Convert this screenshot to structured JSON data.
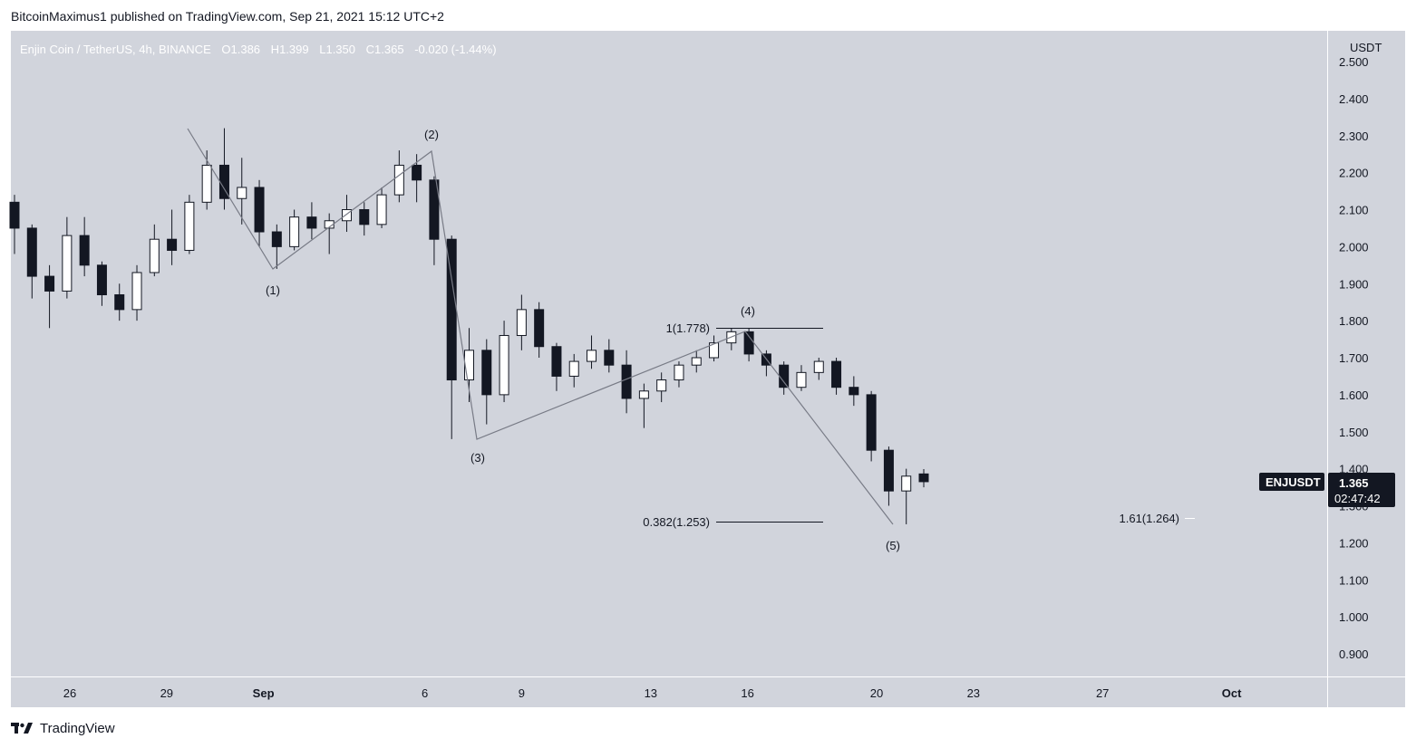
{
  "header": {
    "published": "BitcoinMaximus1 published on TradingView.com, Sep 21, 2021 15:12 UTC+2"
  },
  "symbol_line": {
    "name": "Enjin Coin / TetherUS, 4h, BINANCE",
    "o_label": "O",
    "o": "1.386",
    "h_label": "H",
    "h": "1.399",
    "l_label": "L",
    "l": "1.350",
    "c_label": "C",
    "c": "1.365",
    "change": "-0.020 (-1.44%)"
  },
  "price_axis": {
    "currency": "USDT",
    "ticks": [
      "2.500",
      "2.400",
      "2.300",
      "2.200",
      "2.100",
      "2.000",
      "1.900",
      "1.800",
      "1.700",
      "1.600",
      "1.500",
      "1.400",
      "1.300",
      "1.200",
      "1.100",
      "1.000",
      "0.900"
    ]
  },
  "time_axis": {
    "ticks": [
      "26",
      "29",
      "Sep",
      "6",
      "9",
      "13",
      "16",
      "20",
      "23",
      "27",
      "Oct"
    ]
  },
  "badge": {
    "symbol": "ENJUSDT",
    "price": "1.365",
    "countdown": "02:47:42"
  },
  "waves": [
    "(1)",
    "(2)",
    "(3)",
    "(4)",
    "(5)"
  ],
  "fib_labels": [
    "1(1.778)",
    "0.382(1.253)",
    "1.61(1.264)"
  ],
  "footer": {
    "brand": "TradingView"
  },
  "colors": {
    "plot_bg": "#d1d4dc",
    "bull": "#ffffff",
    "bear": "#131722",
    "wave_line": "#787b86"
  },
  "chart_data": {
    "type": "candlestick",
    "title": "Enjin Coin / TetherUS, 4h, BINANCE",
    "ylabel": "USDT",
    "ylim": [
      0.85,
      2.53
    ],
    "x_range": [
      "2021-08-24",
      "2021-10-03"
    ],
    "grid": false,
    "annotations": {
      "elliott_waves": [
        {
          "label": "(1)",
          "date": "2021-09-01",
          "price": 1.94
        },
        {
          "label": "(2)",
          "date": "2021-09-06",
          "price": 2.26
        },
        {
          "label": "(3)",
          "date": "2021-09-07",
          "price": 1.48
        },
        {
          "label": "(4)",
          "date": "2021-09-16",
          "price": 1.77
        },
        {
          "label": "(5)",
          "date": "2021-09-20",
          "price": 1.25
        }
      ],
      "fib_levels": [
        {
          "label": "1(1.778)",
          "price": 1.778
        },
        {
          "label": "0.382(1.253)",
          "price": 1.253
        },
        {
          "label": "1.61(1.264)",
          "price": 1.264
        }
      ]
    },
    "candles": [
      {
        "date": "2021-08-24",
        "o": 2.12,
        "h": 2.14,
        "l": 1.98,
        "c": 2.05
      },
      {
        "date": "2021-08-25",
        "o": 2.05,
        "h": 2.06,
        "l": 1.86,
        "c": 1.92
      },
      {
        "date": "2021-08-25",
        "o": 1.92,
        "h": 1.95,
        "l": 1.78,
        "c": 1.88
      },
      {
        "date": "2021-08-26",
        "o": 1.88,
        "h": 2.08,
        "l": 1.86,
        "c": 2.03
      },
      {
        "date": "2021-08-27",
        "o": 2.03,
        "h": 2.08,
        "l": 1.92,
        "c": 1.95
      },
      {
        "date": "2021-08-27",
        "o": 1.95,
        "h": 1.96,
        "l": 1.84,
        "c": 1.87
      },
      {
        "date": "2021-08-28",
        "o": 1.87,
        "h": 1.9,
        "l": 1.8,
        "c": 1.83
      },
      {
        "date": "2021-08-28",
        "o": 1.83,
        "h": 1.95,
        "l": 1.8,
        "c": 1.93
      },
      {
        "date": "2021-08-29",
        "o": 1.93,
        "h": 2.06,
        "l": 1.92,
        "c": 2.02
      },
      {
        "date": "2021-08-29",
        "o": 2.02,
        "h": 2.1,
        "l": 1.95,
        "c": 1.99
      },
      {
        "date": "2021-08-30",
        "o": 1.99,
        "h": 2.14,
        "l": 1.98,
        "c": 2.12
      },
      {
        "date": "2021-08-30",
        "o": 2.12,
        "h": 2.26,
        "l": 2.1,
        "c": 2.22
      },
      {
        "date": "2021-08-31",
        "o": 2.22,
        "h": 2.32,
        "l": 2.1,
        "c": 2.13
      },
      {
        "date": "2021-08-31",
        "o": 2.13,
        "h": 2.24,
        "l": 2.06,
        "c": 2.16
      },
      {
        "date": "2021-09-01",
        "o": 2.16,
        "h": 2.18,
        "l": 2.0,
        "c": 2.04
      },
      {
        "date": "2021-09-01",
        "o": 2.04,
        "h": 2.06,
        "l": 1.94,
        "c": 2.0
      },
      {
        "date": "2021-09-02",
        "o": 2.0,
        "h": 2.1,
        "l": 1.99,
        "c": 2.08
      },
      {
        "date": "2021-09-03",
        "o": 2.08,
        "h": 2.12,
        "l": 2.02,
        "c": 2.05
      },
      {
        "date": "2021-09-03",
        "o": 2.05,
        "h": 2.09,
        "l": 1.98,
        "c": 2.07
      },
      {
        "date": "2021-09-04",
        "o": 2.07,
        "h": 2.14,
        "l": 2.04,
        "c": 2.1
      },
      {
        "date": "2021-09-05",
        "o": 2.1,
        "h": 2.12,
        "l": 2.03,
        "c": 2.06
      },
      {
        "date": "2021-09-05",
        "o": 2.06,
        "h": 2.16,
        "l": 2.05,
        "c": 2.14
      },
      {
        "date": "2021-09-06",
        "o": 2.14,
        "h": 2.26,
        "l": 2.12,
        "c": 2.22
      },
      {
        "date": "2021-09-06",
        "o": 2.22,
        "h": 2.25,
        "l": 2.12,
        "c": 2.18
      },
      {
        "date": "2021-09-07",
        "o": 2.18,
        "h": 2.19,
        "l": 1.95,
        "c": 2.02
      },
      {
        "date": "2021-09-07",
        "o": 2.02,
        "h": 2.03,
        "l": 1.48,
        "c": 1.64
      },
      {
        "date": "2021-09-08",
        "o": 1.64,
        "h": 1.78,
        "l": 1.58,
        "c": 1.72
      },
      {
        "date": "2021-09-08",
        "o": 1.72,
        "h": 1.75,
        "l": 1.52,
        "c": 1.6
      },
      {
        "date": "2021-09-09",
        "o": 1.6,
        "h": 1.8,
        "l": 1.58,
        "c": 1.76
      },
      {
        "date": "2021-09-10",
        "o": 1.76,
        "h": 1.87,
        "l": 1.72,
        "c": 1.83
      },
      {
        "date": "2021-09-10",
        "o": 1.83,
        "h": 1.85,
        "l": 1.7,
        "c": 1.73
      },
      {
        "date": "2021-09-11",
        "o": 1.73,
        "h": 1.74,
        "l": 1.61,
        "c": 1.65
      },
      {
        "date": "2021-09-11",
        "o": 1.65,
        "h": 1.71,
        "l": 1.62,
        "c": 1.69
      },
      {
        "date": "2021-09-12",
        "o": 1.69,
        "h": 1.76,
        "l": 1.67,
        "c": 1.72
      },
      {
        "date": "2021-09-12",
        "o": 1.72,
        "h": 1.75,
        "l": 1.66,
        "c": 1.68
      },
      {
        "date": "2021-09-13",
        "o": 1.68,
        "h": 1.72,
        "l": 1.55,
        "c": 1.59
      },
      {
        "date": "2021-09-13",
        "o": 1.59,
        "h": 1.63,
        "l": 1.51,
        "c": 1.61
      },
      {
        "date": "2021-09-14",
        "o": 1.61,
        "h": 1.66,
        "l": 1.58,
        "c": 1.64
      },
      {
        "date": "2021-09-14",
        "o": 1.64,
        "h": 1.69,
        "l": 1.62,
        "c": 1.68
      },
      {
        "date": "2021-09-15",
        "o": 1.68,
        "h": 1.72,
        "l": 1.66,
        "c": 1.7
      },
      {
        "date": "2021-09-15",
        "o": 1.7,
        "h": 1.76,
        "l": 1.69,
        "c": 1.74
      },
      {
        "date": "2021-09-16",
        "o": 1.74,
        "h": 1.78,
        "l": 1.72,
        "c": 1.77
      },
      {
        "date": "2021-09-16",
        "o": 1.77,
        "h": 1.78,
        "l": 1.69,
        "c": 1.71
      },
      {
        "date": "2021-09-17",
        "o": 1.71,
        "h": 1.72,
        "l": 1.65,
        "c": 1.68
      },
      {
        "date": "2021-09-17",
        "o": 1.68,
        "h": 1.69,
        "l": 1.6,
        "c": 1.62
      },
      {
        "date": "2021-09-18",
        "o": 1.62,
        "h": 1.68,
        "l": 1.61,
        "c": 1.66
      },
      {
        "date": "2021-09-18",
        "o": 1.66,
        "h": 1.7,
        "l": 1.64,
        "c": 1.69
      },
      {
        "date": "2021-09-19",
        "o": 1.69,
        "h": 1.7,
        "l": 1.6,
        "c": 1.62
      },
      {
        "date": "2021-09-19",
        "o": 1.62,
        "h": 1.65,
        "l": 1.57,
        "c": 1.6
      },
      {
        "date": "2021-09-20",
        "o": 1.6,
        "h": 1.61,
        "l": 1.42,
        "c": 1.45
      },
      {
        "date": "2021-09-20",
        "o": 1.45,
        "h": 1.46,
        "l": 1.3,
        "c": 1.34
      },
      {
        "date": "2021-09-21",
        "o": 1.34,
        "h": 1.4,
        "l": 1.25,
        "c": 1.38
      },
      {
        "date": "2021-09-21",
        "o": 1.386,
        "h": 1.399,
        "l": 1.35,
        "c": 1.365
      }
    ]
  }
}
